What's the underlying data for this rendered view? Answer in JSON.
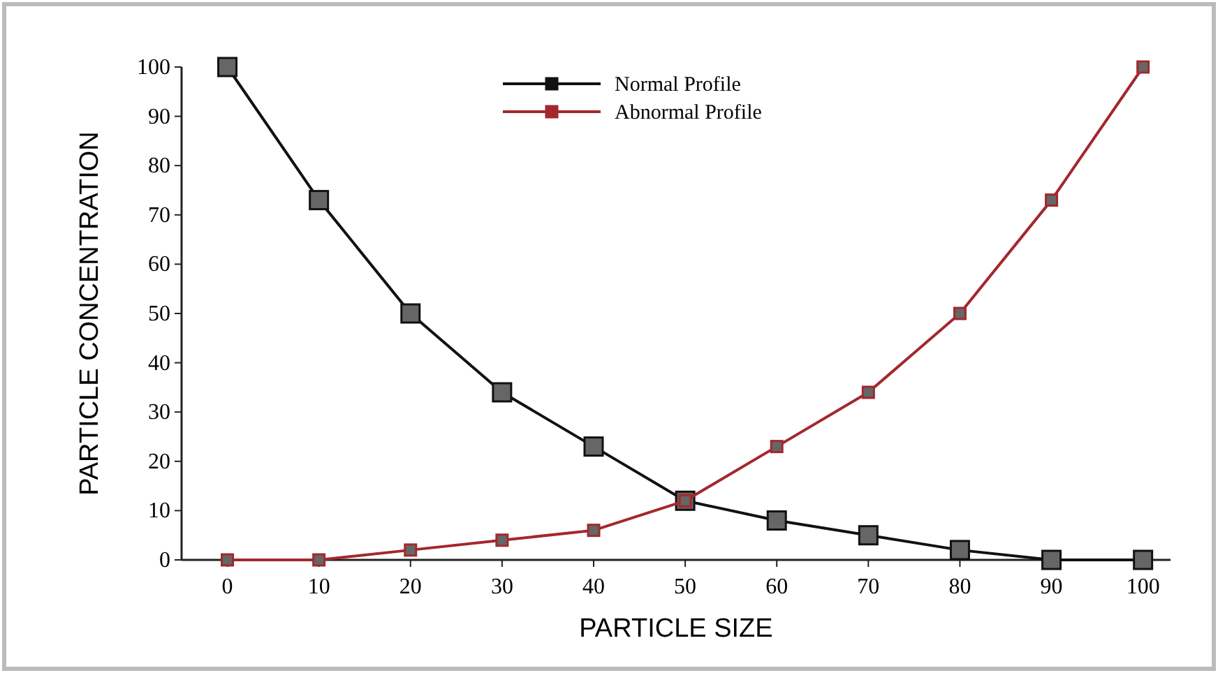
{
  "chart_data": {
    "type": "line",
    "xlabel": "PARTICLE SIZE",
    "ylabel": "PARTICLE CONCENTRATION",
    "x": [
      0,
      10,
      20,
      30,
      40,
      50,
      60,
      70,
      80,
      90,
      100
    ],
    "series": [
      {
        "name": "Normal Profile",
        "color": "#111111",
        "values": [
          100,
          73,
          50,
          34,
          23,
          12,
          8,
          5,
          2,
          0,
          0
        ]
      },
      {
        "name": "Abnormal Profile",
        "color": "#a3282e",
        "values": [
          0,
          0,
          2,
          4,
          6,
          12,
          23,
          34,
          50,
          73,
          100
        ]
      }
    ],
    "xlim": [
      -5,
      103
    ],
    "xticks": [
      0,
      10,
      20,
      30,
      40,
      50,
      60,
      70,
      80,
      90,
      100
    ],
    "ylim": [
      0,
      100
    ],
    "yticks": [
      0,
      10,
      20,
      30,
      40,
      50,
      60,
      70,
      80,
      90,
      100
    ],
    "grid": false,
    "legend": "top",
    "marker": "square",
    "line_style": "solid"
  }
}
